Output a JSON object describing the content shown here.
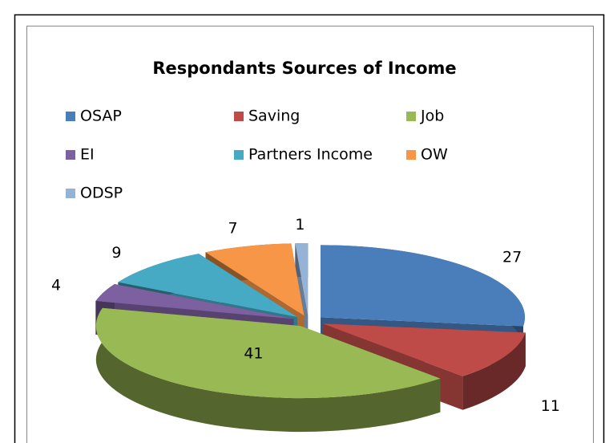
{
  "chart_data": {
    "type": "pie",
    "title": "Respondants Sources of Income",
    "categories": [
      "OSAP",
      "Saving",
      "Job",
      "EI",
      "Partners Income",
      "OW",
      "ODSP"
    ],
    "values": [
      27,
      11,
      41,
      4,
      9,
      7,
      1
    ],
    "colors": [
      "#4a7ebb",
      "#be4b48",
      "#98b954",
      "#7d60a0",
      "#46aac5",
      "#f79646",
      "#95b3d7"
    ]
  }
}
